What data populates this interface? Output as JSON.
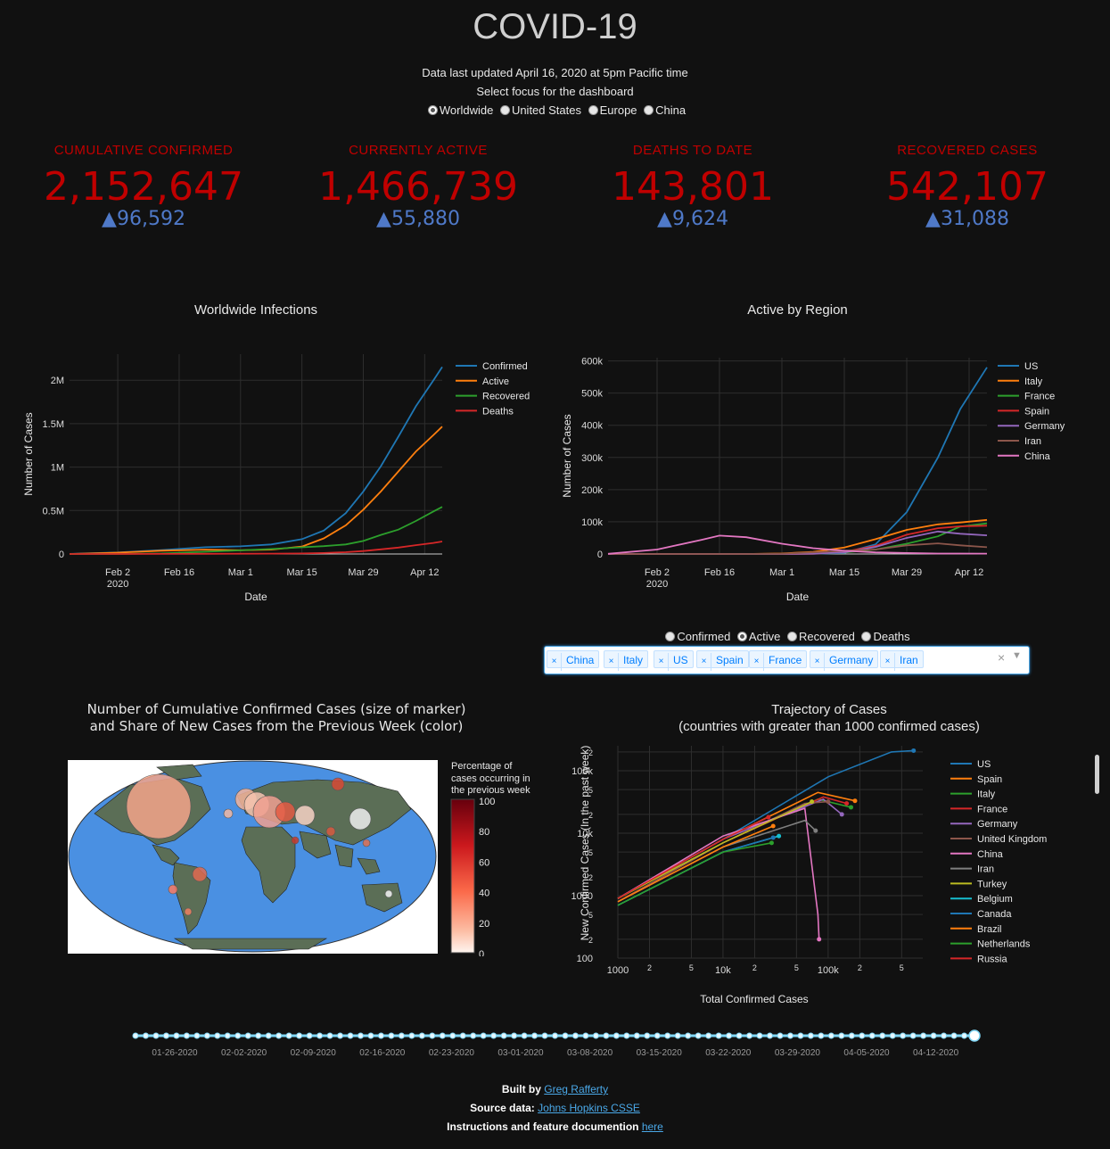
{
  "header": {
    "title": "COVID-19",
    "updated": "Data last updated April 16, 2020 at 5pm Pacific time",
    "focus_prompt": "Select focus for the dashboard",
    "focus_options": [
      "Worldwide",
      "United States",
      "Europe",
      "China"
    ],
    "focus_selected": "Worldwide"
  },
  "kpis": [
    {
      "label": "CUMULATIVE CONFIRMED",
      "value": "2,152,647",
      "delta": "▲96,592"
    },
    {
      "label": "CURRENTLY ACTIVE",
      "value": "1,466,739",
      "delta": "▲55,880"
    },
    {
      "label": "DEATHS TO DATE",
      "value": "143,801",
      "delta": "▲9,624"
    },
    {
      "label": "RECOVERED CASES",
      "value": "542,107",
      "delta": "▲31,088"
    }
  ],
  "colors": {
    "kpi_red": "#c00000",
    "kpi_blue": "#4f79c8",
    "bg": "#111111"
  },
  "date_ticks": [
    "Feb 2",
    "Feb 16",
    "Mar 1",
    "Mar 15",
    "Mar 29",
    "Apr 12"
  ],
  "date_year": "2020",
  "chart_data": [
    {
      "type": "line",
      "title": "Worldwide Infections",
      "xlabel": "Date",
      "ylabel": "Number of Cases",
      "x": [
        "2020-01-22",
        "2020-02-02",
        "2020-02-12",
        "2020-02-22",
        "2020-03-01",
        "2020-03-08",
        "2020-03-15",
        "2020-03-20",
        "2020-03-25",
        "2020-03-29",
        "2020-04-02",
        "2020-04-06",
        "2020-04-10",
        "2020-04-14",
        "2020-04-16"
      ],
      "yticks": [
        "0",
        "0.5M",
        "1M",
        "1.5M",
        "2M"
      ],
      "ylim": [
        0,
        2300000
      ],
      "series": [
        {
          "name": "Confirmed",
          "color": "#1f77b4",
          "values": [
            555,
            17000,
            45000,
            78000,
            88000,
            110000,
            170000,
            270000,
            470000,
            720000,
            1010000,
            1350000,
            1700000,
            2000000,
            2152647
          ]
        },
        {
          "name": "Active",
          "color": "#ff7f0e",
          "values": [
            500,
            15000,
            38000,
            50000,
            43000,
            50000,
            85000,
            180000,
            330000,
            510000,
            720000,
            950000,
            1180000,
            1370000,
            1466739
          ]
        },
        {
          "name": "Recovered",
          "color": "#2ca02c",
          "values": [
            30,
            500,
            6000,
            26000,
            42000,
            57000,
            77000,
            90000,
            110000,
            150000,
            220000,
            280000,
            380000,
            490000,
            542107
          ]
        },
        {
          "name": "Deaths",
          "color": "#d62728",
          "values": [
            17,
            360,
            1100,
            2400,
            3000,
            3800,
            6500,
            11000,
            21000,
            34000,
            53000,
            74000,
            102000,
            127000,
            143801
          ]
        }
      ]
    },
    {
      "type": "line",
      "title": "Active by Region",
      "xlabel": "Date",
      "ylabel": "Number of Cases",
      "x": [
        "2020-01-22",
        "2020-02-02",
        "2020-02-12",
        "2020-02-16",
        "2020-02-22",
        "2020-03-01",
        "2020-03-08",
        "2020-03-15",
        "2020-03-22",
        "2020-03-29",
        "2020-04-05",
        "2020-04-10",
        "2020-04-16"
      ],
      "yticks": [
        "0",
        "100k",
        "200k",
        "300k",
        "400k",
        "500k",
        "600k"
      ],
      "ylim": [
        0,
        610000
      ],
      "series": [
        {
          "name": "US",
          "color": "#1f77b4",
          "values": [
            1,
            8,
            12,
            13,
            15,
            60,
            450,
            3400,
            30000,
            130000,
            300000,
            450000,
            580000
          ]
        },
        {
          "name": "Italy",
          "color": "#ff7f0e",
          "values": [
            0,
            2,
            3,
            3,
            60,
            1600,
            6400,
            20000,
            46000,
            75000,
            92000,
            98000,
            106000
          ]
        },
        {
          "name": "France",
          "color": "#2ca02c",
          "values": [
            3,
            6,
            7,
            7,
            7,
            100,
            1000,
            4500,
            14000,
            32000,
            55000,
            85000,
            95000
          ]
        },
        {
          "name": "Spain",
          "color": "#d62728",
          "values": [
            0,
            1,
            2,
            2,
            2,
            80,
            600,
            7000,
            25000,
            60000,
            80000,
            86000,
            88000
          ]
        },
        {
          "name": "Germany",
          "color": "#9467bd",
          "values": [
            0,
            10,
            14,
            14,
            14,
            100,
            1000,
            5000,
            22000,
            50000,
            70000,
            63000,
            58000
          ]
        },
        {
          "name": "Iran",
          "color": "#8c564b",
          "values": [
            0,
            0,
            0,
            0,
            20,
            900,
            5000,
            10000,
            14000,
            27000,
            33000,
            27000,
            21000
          ]
        },
        {
          "name": "China",
          "color": "#e377c2",
          "values": [
            500,
            14000,
            44000,
            57000,
            52000,
            32000,
            18000,
            10000,
            5000,
            3000,
            1500,
            1300,
            1100
          ]
        }
      ]
    },
    {
      "type": "scatter",
      "title": "Trajectory of Cases",
      "subtitle": "(countries with greater than 1000 confirmed cases)",
      "xlabel": "Total Confirmed Cases",
      "ylabel": "New Confirmed Cases (In the past week)",
      "x_scale": "log",
      "y_scale": "log",
      "xticks": [
        "1000",
        "2",
        "5",
        "10k",
        "2",
        "5",
        "100k",
        "2",
        "5"
      ],
      "yticks": [
        "100",
        "2",
        "5",
        "1000",
        "2",
        "5",
        "10k",
        "2",
        "5",
        "100k",
        "2"
      ],
      "series": [
        {
          "name": "US",
          "color": "#1f77b4",
          "points": [
            [
              1000,
              900
            ],
            [
              10000,
              8000
            ],
            [
              100000,
              80000
            ],
            [
              400000,
              200000
            ],
            [
              650000,
              210000
            ]
          ]
        },
        {
          "name": "Spain",
          "color": "#ff7f0e",
          "points": [
            [
              1000,
              900
            ],
            [
              10000,
              8000
            ],
            [
              80000,
              45000
            ],
            [
              180000,
              33000
            ]
          ]
        },
        {
          "name": "Italy",
          "color": "#2ca02c",
          "points": [
            [
              1000,
              900
            ],
            [
              10000,
              7000
            ],
            [
              80000,
              35000
            ],
            [
              165000,
              26000
            ]
          ]
        },
        {
          "name": "France",
          "color": "#d62728",
          "points": [
            [
              1000,
              800
            ],
            [
              10000,
              7000
            ],
            [
              90000,
              38000
            ],
            [
              150000,
              30000
            ]
          ]
        },
        {
          "name": "Germany",
          "color": "#9467bd",
          "points": [
            [
              1000,
              900
            ],
            [
              10000,
              8000
            ],
            [
              90000,
              35000
            ],
            [
              135000,
              20000
            ]
          ]
        },
        {
          "name": "United Kingdom",
          "color": "#8c564b",
          "points": [
            [
              1000,
              800
            ],
            [
              10000,
              7000
            ],
            [
              60000,
              30000
            ],
            [
              100000,
              32000
            ]
          ]
        },
        {
          "name": "China",
          "color": "#e377c2",
          "points": [
            [
              1000,
              900
            ],
            [
              10000,
              9000
            ],
            [
              60000,
              25000
            ],
            [
              80000,
              500
            ],
            [
              82000,
              200
            ]
          ]
        },
        {
          "name": "Iran",
          "color": "#7f7f7f",
          "points": [
            [
              1000,
              800
            ],
            [
              10000,
              6000
            ],
            [
              60000,
              16000
            ],
            [
              76000,
              11000
            ]
          ]
        },
        {
          "name": "Turkey",
          "color": "#bcbd22",
          "points": [
            [
              1000,
              900
            ],
            [
              10000,
              7000
            ],
            [
              70000,
              32000
            ]
          ]
        },
        {
          "name": "Belgium",
          "color": "#17becf",
          "points": [
            [
              1000,
              700
            ],
            [
              10000,
              5000
            ],
            [
              34000,
              9000
            ]
          ]
        },
        {
          "name": "Canada",
          "color": "#1f77b4",
          "points": [
            [
              1000,
              700
            ],
            [
              10000,
              5000
            ],
            [
              30000,
              8500
            ]
          ]
        },
        {
          "name": "Brazil",
          "color": "#ff7f0e",
          "points": [
            [
              1000,
              800
            ],
            [
              10000,
              6000
            ],
            [
              30000,
              13000
            ]
          ]
        },
        {
          "name": "Netherlands",
          "color": "#2ca02c",
          "points": [
            [
              1000,
              700
            ],
            [
              10000,
              5000
            ],
            [
              29000,
              7000
            ]
          ]
        },
        {
          "name": "Russia",
          "color": "#d62728",
          "points": [
            [
              1000,
              900
            ],
            [
              10000,
              8000
            ],
            [
              27000,
              18000
            ]
          ]
        }
      ]
    }
  ],
  "region_controls": {
    "metric_options": [
      "Confirmed",
      "Active",
      "Recovered",
      "Deaths"
    ],
    "metric_selected": "Active",
    "selected_countries": [
      "China",
      "Italy",
      "US",
      "Spain",
      "France",
      "Germany",
      "Iran"
    ]
  },
  "map": {
    "title_line1": "Number of Cumulative Confirmed Cases (size of marker)",
    "title_line2": "and Share of New Cases from the Previous Week (color)",
    "colorbar_title": [
      "Percentage of",
      "cases occurring in",
      "the previous week"
    ],
    "colorbar_ticks": [
      "100",
      "80",
      "60",
      "40",
      "20",
      "0"
    ],
    "ocean_color": "#4a90e2",
    "land_color": "#5b6e56"
  },
  "timeline": {
    "labels": [
      "01-26-2020",
      "02-02-2020",
      "02-09-2020",
      "02-16-2020",
      "02-23-2020",
      "03-01-2020",
      "03-08-2020",
      "03-15-2020",
      "03-22-2020",
      "03-29-2020",
      "04-05-2020",
      "04-12-2020"
    ]
  },
  "footer": {
    "built_by": "Built by",
    "author": "Greg Rafferty",
    "source_label": "Source data:",
    "source": "Johns Hopkins CSSE",
    "docs_label": "Instructions and feature documention",
    "docs_link": "here"
  }
}
